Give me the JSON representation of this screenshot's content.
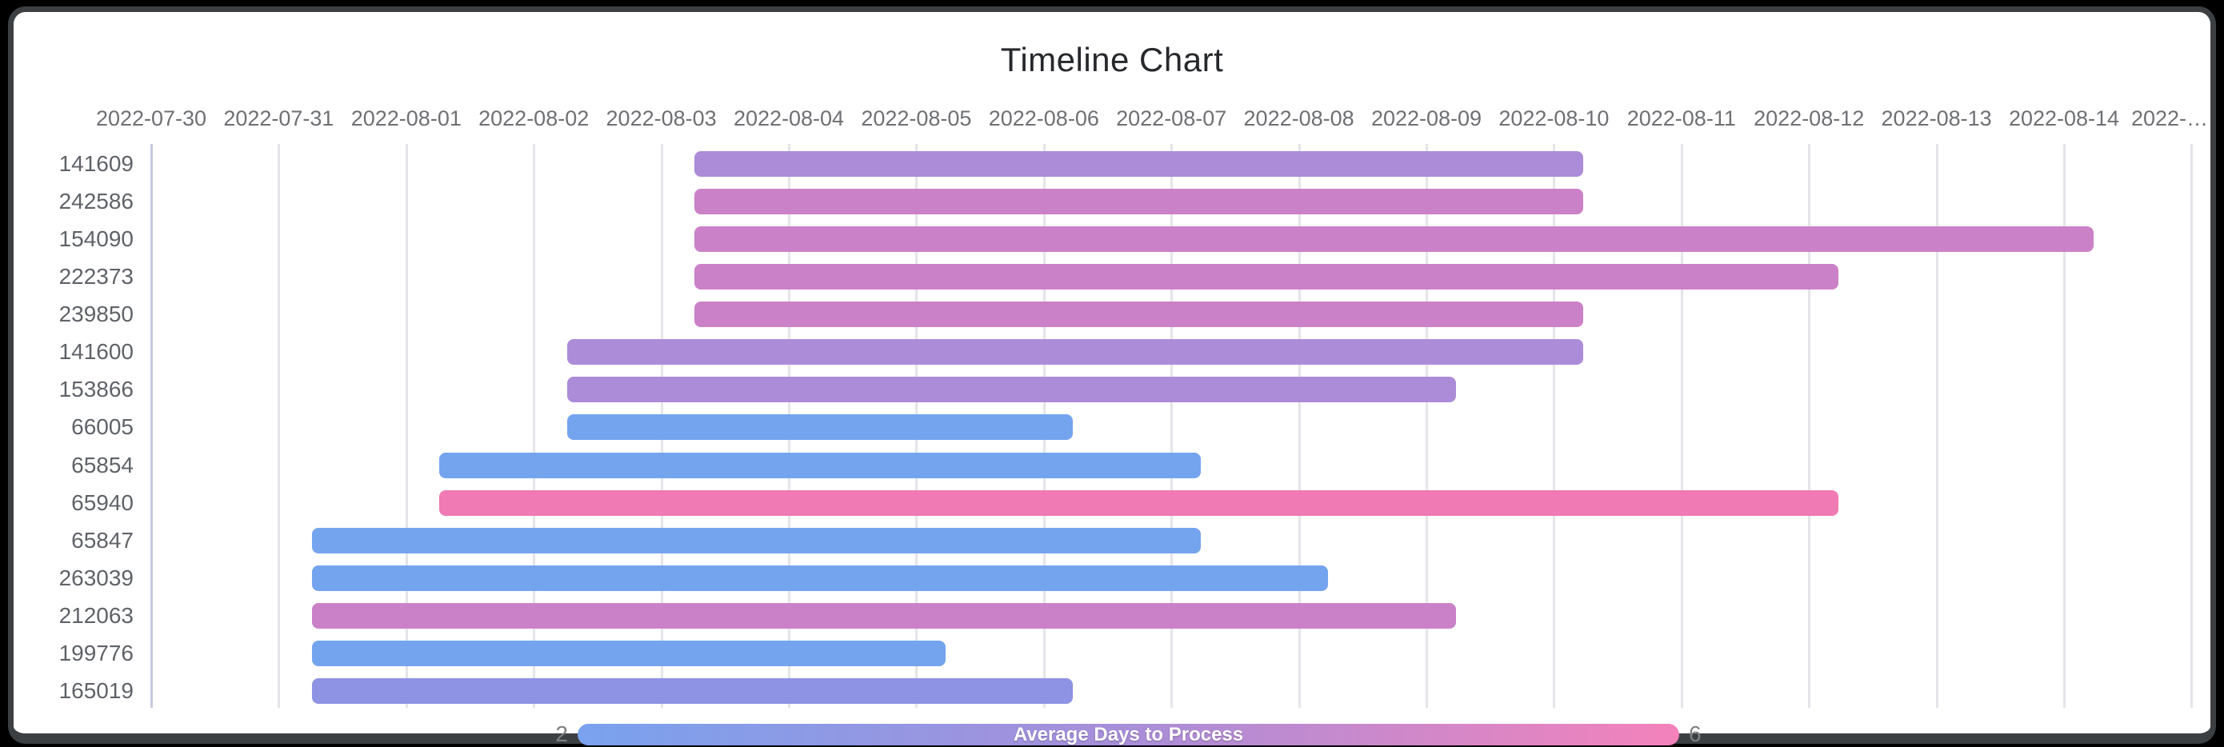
{
  "title": "Timeline Chart",
  "chart_data": {
    "type": "timeline",
    "title": "Timeline Chart",
    "x_axis": {
      "start_date": "2022-07-30",
      "tick_interval_days": 1,
      "tick_labels": [
        "2022-07-30",
        "2022-07-31",
        "2022-08-01",
        "2022-08-02",
        "2022-08-03",
        "2022-08-04",
        "2022-08-05",
        "2022-08-06",
        "2022-08-07",
        "2022-08-08",
        "2022-08-09",
        "2022-08-10",
        "2022-08-11",
        "2022-08-12",
        "2022-08-13",
        "2022-08-14",
        "2022-…"
      ],
      "grid": true
    },
    "rows": [
      {
        "id": "141609",
        "start": "2022-08-03",
        "end": "2022-08-10",
        "duration_days": 7,
        "color": "#ac8cd8"
      },
      {
        "id": "242586",
        "start": "2022-08-03",
        "end": "2022-08-10",
        "duration_days": 7,
        "color": "#cb81c8"
      },
      {
        "id": "154090",
        "start": "2022-08-03",
        "end": "2022-08-14",
        "duration_days": 11,
        "color": "#cb81c8"
      },
      {
        "id": "222373",
        "start": "2022-08-03",
        "end": "2022-08-12",
        "duration_days": 9,
        "color": "#cb81c8"
      },
      {
        "id": "239850",
        "start": "2022-08-03",
        "end": "2022-08-10",
        "duration_days": 7,
        "color": "#cb81c8"
      },
      {
        "id": "141600",
        "start": "2022-08-02",
        "end": "2022-08-10",
        "duration_days": 8,
        "color": "#ac8cd8"
      },
      {
        "id": "153866",
        "start": "2022-08-02",
        "end": "2022-08-09",
        "duration_days": 7,
        "color": "#ac8cd8"
      },
      {
        "id": "66005",
        "start": "2022-08-02",
        "end": "2022-08-06",
        "duration_days": 4,
        "color": "#75a4ef"
      },
      {
        "id": "65854",
        "start": "2022-08-01",
        "end": "2022-08-07",
        "duration_days": 6,
        "color": "#75a4ef"
      },
      {
        "id": "65940",
        "start": "2022-08-01",
        "end": "2022-08-12",
        "duration_days": 11,
        "color": "#f07ab3"
      },
      {
        "id": "65847",
        "start": "2022-07-31",
        "end": "2022-08-07",
        "duration_days": 7,
        "color": "#75a4ef"
      },
      {
        "id": "263039",
        "start": "2022-07-31",
        "end": "2022-08-08",
        "duration_days": 8,
        "color": "#75a4ef"
      },
      {
        "id": "212063",
        "start": "2022-07-31",
        "end": "2022-08-09",
        "duration_days": 9,
        "color": "#cb81c8"
      },
      {
        "id": "199776",
        "start": "2022-07-31",
        "end": "2022-08-05",
        "duration_days": 5,
        "color": "#75a4ef"
      },
      {
        "id": "165019",
        "start": "2022-07-31",
        "end": "2022-08-06",
        "duration_days": 6,
        "color": "#8e93e3"
      }
    ],
    "legend": {
      "title": "Average Days to Process",
      "min_label": "2",
      "max_label": "6",
      "gradient_colors": [
        "#79a2ee",
        "#a98ed9",
        "#f482bb"
      ]
    }
  }
}
